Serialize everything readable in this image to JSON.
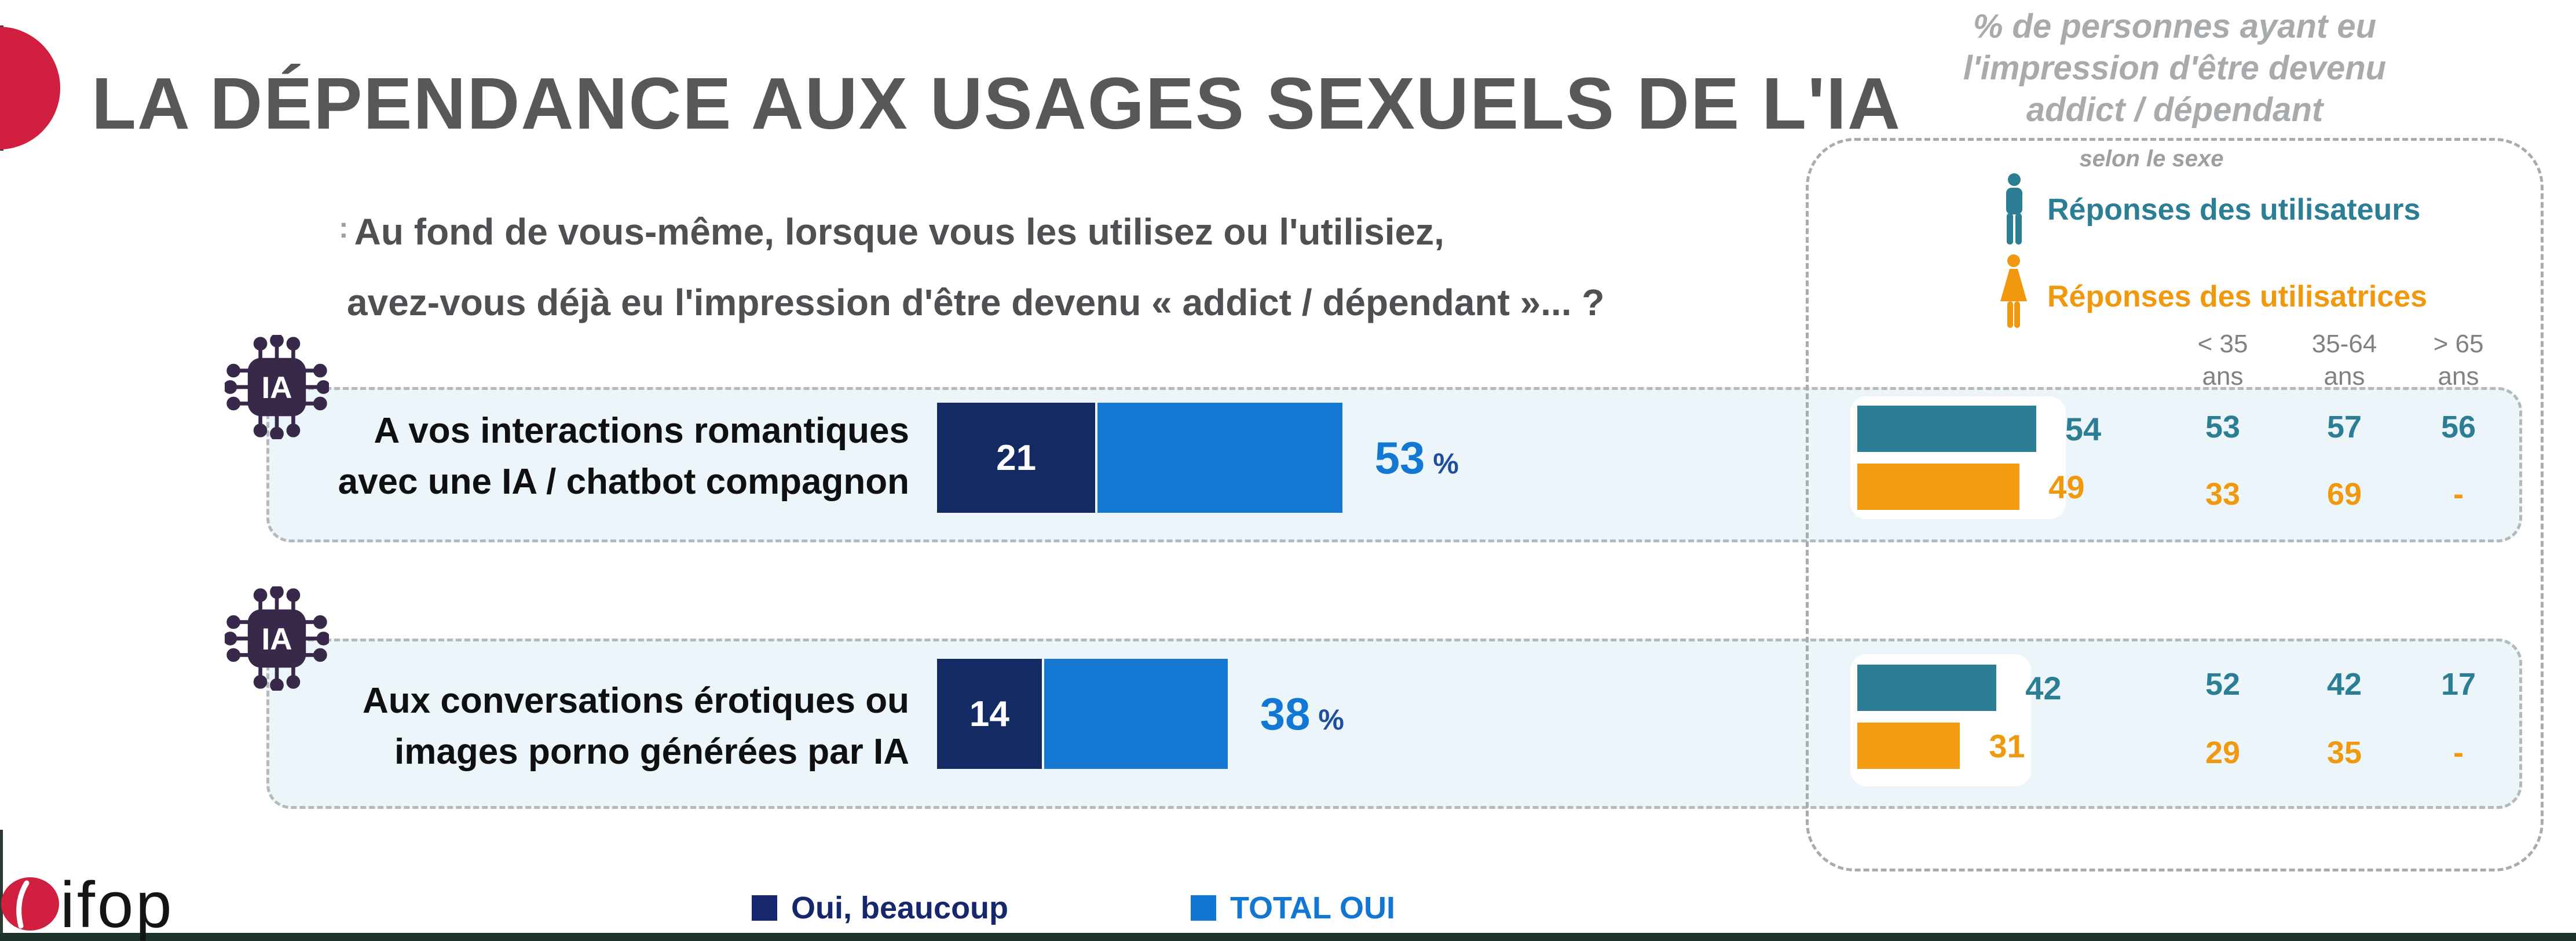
{
  "header": {
    "title": "LA DÉPENDANCE AUX USAGES SEXUELS DE L'IA",
    "question": {
      "stray_mark": ":",
      "line1": "Au fond de vous-même, lorsque vous les utilisez ou l'utilisiez,",
      "line2": "avez-vous déjà eu l'impression d'être devenu « addict / dépendant »... ?"
    }
  },
  "rows": [
    {
      "label_line1": "A vos interactions romantiques",
      "label_line2": "avec une IA / chatbot compagnon",
      "dark_value": "21",
      "total_value": "53",
      "percent": "%",
      "men_total": "54",
      "women_total": "49",
      "men_ages": [
        "53",
        "57",
        "56"
      ],
      "women_ages": [
        "33",
        "69",
        "-"
      ]
    },
    {
      "label_line1": "Aux conversations érotiques ou",
      "label_line2": "images porno générées par IA",
      "dark_value": "14",
      "total_value": "38",
      "percent": "%",
      "men_total": "42",
      "women_total": "31",
      "men_ages": [
        "52",
        "42",
        "17"
      ],
      "women_ages": [
        "29",
        "35",
        "-"
      ]
    }
  ],
  "side_panel": {
    "title_lines": [
      "% de personnes ayant eu",
      "l'impression d'être devenu",
      "addict / dépendant"
    ],
    "subtitle": "selon le sexe",
    "legend_men": "Réponses des utilisateurs",
    "legend_women": "Réponses des utilisatrices",
    "age_headers": [
      {
        "range": "< 35",
        "unit": "ans"
      },
      {
        "range": "35-64",
        "unit": "ans"
      },
      {
        "range": "> 65",
        "unit": "ans"
      }
    ]
  },
  "legend": {
    "dark": "Oui, beaucoup",
    "total": "TOTAL OUI"
  },
  "branding": {
    "logo": "ifop"
  },
  "icons": {
    "ia_chip": "IA"
  },
  "colors": {
    "navy": "#132a63",
    "blue": "#1478d2",
    "teal": "#2c7e95",
    "orange": "#f39c12",
    "row_background": "#ecf5fa",
    "title_gray": "#57585a",
    "panel_gray": "#a8abad",
    "ifop_red": "#d11f3f",
    "chip_purple": "#38294a"
  },
  "chart_data": {
    "type": "bar",
    "title": "LA DÉPENDANCE AUX USAGES SEXUELS DE L'IA",
    "question": "Au fond de vous-même, lorsque vous les utilisez ou l'utilisiez, avez-vous déjà eu l'impression d'être devenu « addict / dépendant »... ?",
    "unit": "%",
    "categories": [
      "A vos interactions romantiques avec une IA / chatbot compagnon",
      "Aux conversations érotiques ou images porno générées par IA"
    ],
    "series": [
      {
        "name": "Oui, beaucoup",
        "values": [
          21,
          14
        ]
      },
      {
        "name": "TOTAL OUI",
        "values": [
          53,
          38
        ]
      }
    ],
    "legend_position": "bottom",
    "by_sex": {
      "note": "% de personnes ayant eu l'impression d'être devenu addict / dépendant selon le sexe",
      "age_bands": [
        "< 35 ans",
        "35-64 ans",
        "> 65 ans"
      ],
      "rows": [
        {
          "category": "A vos interactions romantiques avec une IA / chatbot compagnon",
          "men": {
            "total": 54,
            "by_age": [
              53,
              57,
              56
            ]
          },
          "women": {
            "total": 49,
            "by_age": [
              33,
              69,
              "-"
            ]
          }
        },
        {
          "category": "Aux conversations érotiques ou images porno générées par IA",
          "men": {
            "total": 42,
            "by_age": [
              52,
              42,
              17
            ]
          },
          "women": {
            "total": 31,
            "by_age": [
              29,
              35,
              "-"
            ]
          }
        }
      ]
    }
  }
}
